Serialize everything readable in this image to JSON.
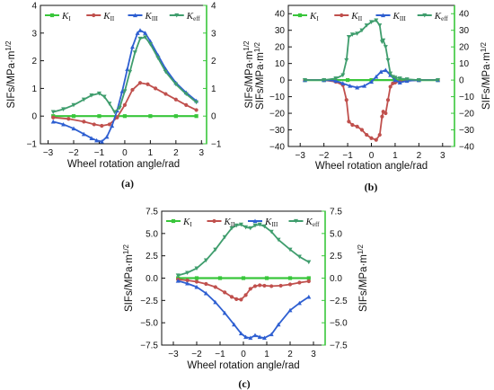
{
  "colors": {
    "K_I": "#39c63b",
    "K_II": "#c0504d",
    "K_III": "#2e5fd1",
    "K_eff": "#3f9d6d",
    "right_axis": "#39c63b",
    "axis": "#111111"
  },
  "chart_data": [
    {
      "type": "line",
      "panel_label": "(a)",
      "xlabel": "Wheel rotation angle/rad",
      "ylabel": "SIFs/MPa·m",
      "ylabel_exp": "1/2",
      "ylabel_right": "SIFs/MPa·m",
      "xlim": [
        -3.3,
        3.2
      ],
      "ylim": [
        -1,
        4
      ],
      "xticks": [
        -3,
        -2,
        -1,
        0,
        1,
        2,
        3
      ],
      "xtick_labels": [
        "−3",
        "−2",
        "−1",
        "0",
        "1",
        "2",
        "3"
      ],
      "yticks": [
        -1,
        0,
        1,
        2,
        3,
        4
      ],
      "ytick_labels": [
        "−1",
        "0",
        "1",
        "2",
        "3",
        "4"
      ],
      "legend": [
        {
          "key": "K_I",
          "base": "K",
          "sub": "I"
        },
        {
          "key": "K_II",
          "base": "K",
          "sub": "II"
        },
        {
          "key": "K_III",
          "base": "K",
          "sub": "III"
        },
        {
          "key": "K_eff",
          "base": "K",
          "sub": "eff"
        }
      ],
      "series": [
        {
          "key": "K_I",
          "x": [
            -2.8,
            -2.0,
            -1.0,
            0.0,
            1.0,
            2.0,
            2.8
          ],
          "y": [
            0.0,
            0.0,
            0.0,
            0.0,
            0.0,
            0.0,
            0.0
          ]
        },
        {
          "key": "K_II",
          "x": [
            -2.8,
            -2.2,
            -1.6,
            -1.2,
            -0.9,
            -0.6,
            -0.3,
            0.0,
            0.3,
            0.6,
            0.9,
            1.2,
            1.6,
            2.0,
            2.4,
            2.8
          ],
          "y": [
            -0.05,
            -0.1,
            -0.2,
            -0.3,
            -0.35,
            -0.3,
            -0.05,
            0.4,
            0.95,
            1.2,
            1.15,
            1.0,
            0.8,
            0.6,
            0.4,
            0.22
          ]
        },
        {
          "key": "K_III",
          "x": [
            -2.8,
            -2.4,
            -2.0,
            -1.6,
            -1.3,
            -1.1,
            -0.9,
            -0.7,
            -0.5,
            -0.3,
            -0.1,
            0.1,
            0.3,
            0.5,
            0.6,
            0.8,
            1.0,
            1.3,
            1.6,
            2.0,
            2.4,
            2.8
          ],
          "y": [
            -0.2,
            -0.3,
            -0.45,
            -0.65,
            -0.8,
            -0.88,
            -0.92,
            -0.75,
            -0.35,
            0.2,
            0.9,
            1.7,
            2.5,
            3.0,
            3.1,
            3.0,
            2.7,
            2.2,
            1.7,
            1.2,
            0.85,
            0.55
          ]
        },
        {
          "key": "K_eff",
          "x": [
            -2.8,
            -2.4,
            -2.0,
            -1.6,
            -1.3,
            -1.0,
            -0.8,
            -0.6,
            -0.4,
            -0.2,
            0.0,
            0.2,
            0.4,
            0.6,
            0.8,
            1.0,
            1.3,
            1.6,
            2.0,
            2.4,
            2.8
          ],
          "y": [
            0.15,
            0.25,
            0.4,
            0.6,
            0.75,
            0.82,
            0.7,
            0.45,
            0.15,
            0.3,
            0.9,
            1.6,
            2.3,
            2.8,
            2.85,
            2.6,
            2.1,
            1.6,
            1.15,
            0.8,
            0.5
          ]
        }
      ]
    },
    {
      "type": "line",
      "panel_label": "(b)",
      "xlabel": "Wheel rotation angle/rad",
      "ylabel": "SIFs/MPa·m",
      "ylabel_exp": "1/2",
      "ylabel_right": "SIFs/MPa·m",
      "xlim": [
        -3.5,
        3.5
      ],
      "ylim": [
        -40,
        45
      ],
      "xticks": [
        -3,
        -2,
        -1,
        0,
        1,
        2,
        3
      ],
      "xtick_labels": [
        "−3",
        "−2",
        "−1",
        "0",
        "1",
        "2",
        "3"
      ],
      "yticks": [
        -40,
        -30,
        -20,
        -10,
        0,
        10,
        20,
        30,
        40
      ],
      "ytick_labels": [
        "−40",
        "−30",
        "−20",
        "−10",
        "0",
        "10",
        "20",
        "30",
        "40"
      ],
      "legend": [
        {
          "key": "K_I",
          "base": "K",
          "sub": "I"
        },
        {
          "key": "K_II",
          "base": "K",
          "sub": "II"
        },
        {
          "key": "K_III",
          "base": "K",
          "sub": "III"
        },
        {
          "key": "K_eff",
          "base": "K",
          "sub": "eff"
        }
      ],
      "series": [
        {
          "key": "K_I",
          "x": [
            -2.8,
            -2.0,
            -1.0,
            0.0,
            1.0,
            2.0,
            2.8
          ],
          "y": [
            0.0,
            0.0,
            0.0,
            0.0,
            0.0,
            0.0,
            0.0
          ]
        },
        {
          "key": "K_II",
          "x": [
            -2.8,
            -2.0,
            -1.5,
            -1.2,
            -1.05,
            -0.95,
            -0.8,
            -0.6,
            -0.4,
            -0.2,
            0.0,
            0.2,
            0.35,
            0.45,
            0.5,
            0.6,
            0.7,
            0.8,
            0.9,
            1.0,
            1.2,
            1.5,
            2.0,
            2.8
          ],
          "y": [
            0.0,
            0.0,
            -1.0,
            -3.0,
            -12.0,
            -25.0,
            -27.0,
            -28.0,
            -30.0,
            -33.0,
            -35.0,
            -36.0,
            -33.0,
            -22.0,
            -19.0,
            -20.0,
            -12.0,
            -4.0,
            -2.0,
            -1.5,
            -1.0,
            -0.5,
            0.0,
            0.0
          ]
        },
        {
          "key": "K_III",
          "x": [
            -2.8,
            -2.0,
            -1.5,
            -1.2,
            -0.9,
            -0.6,
            -0.3,
            0.0,
            0.2,
            0.4,
            0.6,
            0.8,
            1.0,
            1.2,
            1.5,
            2.0,
            2.8
          ],
          "y": [
            0.0,
            0.0,
            -0.5,
            -2.0,
            -3.5,
            -4.5,
            -3.5,
            -1.0,
            2.0,
            5.0,
            6.0,
            3.0,
            0.0,
            -1.5,
            -0.5,
            0.0,
            0.0
          ]
        },
        {
          "key": "K_eff",
          "x": [
            -2.8,
            -2.0,
            -1.5,
            -1.2,
            -1.05,
            -0.95,
            -0.8,
            -0.6,
            -0.4,
            -0.2,
            0.0,
            0.2,
            0.35,
            0.45,
            0.5,
            0.6,
            0.7,
            0.8,
            0.9,
            1.0,
            1.2,
            1.5,
            2.0,
            2.8
          ],
          "y": [
            0.0,
            0.0,
            1.0,
            3.0,
            12.0,
            26.0,
            27.5,
            28.0,
            30.0,
            33.0,
            35.0,
            36.0,
            33.0,
            23.0,
            24.0,
            20.0,
            12.0,
            4.0,
            2.0,
            1.5,
            1.0,
            0.5,
            0.0,
            0.0
          ]
        }
      ]
    },
    {
      "type": "line",
      "panel_label": "(c)",
      "xlabel": "Wheel rotation angle/rad",
      "ylabel": "SIFs/MPa·m",
      "ylabel_exp": "1/2",
      "ylabel_right": "SIFs/MPa·m",
      "xlim": [
        -3.5,
        3.5
      ],
      "ylim": [
        -7.5,
        7.5
      ],
      "xticks": [
        -3,
        -2,
        -1,
        0,
        1,
        2,
        3
      ],
      "xtick_labels": [
        "−3",
        "−2",
        "−1",
        "0",
        "1",
        "2",
        "3"
      ],
      "yticks": [
        -7.5,
        -5.0,
        -2.5,
        0.0,
        2.5,
        5.0,
        7.5
      ],
      "ytick_labels": [
        "−7.5",
        "−5.0",
        "−2.5",
        "0.0",
        "2.5",
        "5.0",
        "7.5"
      ],
      "legend": [
        {
          "key": "K_I",
          "base": "K",
          "sub": "I"
        },
        {
          "key": "K_II",
          "base": "K",
          "sub": "II"
        },
        {
          "key": "K_III",
          "base": "K",
          "sub": "III"
        },
        {
          "key": "K_eff",
          "base": "K",
          "sub": "eff"
        }
      ],
      "series": [
        {
          "key": "K_I",
          "x": [
            -2.8,
            -2.0,
            -1.0,
            0.0,
            1.0,
            2.0,
            2.8
          ],
          "y": [
            0.0,
            0.0,
            0.0,
            0.0,
            0.0,
            0.0,
            0.0
          ]
        },
        {
          "key": "K_II",
          "x": [
            -2.8,
            -2.4,
            -2.0,
            -1.6,
            -1.2,
            -0.8,
            -0.5,
            -0.3,
            -0.1,
            0.1,
            0.3,
            0.5,
            0.7,
            0.9,
            1.2,
            1.6,
            2.0,
            2.4,
            2.8
          ],
          "y": [
            -0.15,
            -0.25,
            -0.4,
            -0.65,
            -1.0,
            -1.6,
            -2.1,
            -2.35,
            -2.4,
            -1.9,
            -1.2,
            -0.9,
            -0.8,
            -0.85,
            -0.9,
            -0.85,
            -0.7,
            -0.5,
            -0.35
          ]
        },
        {
          "key": "K_III",
          "x": [
            -2.8,
            -2.4,
            -2.0,
            -1.6,
            -1.2,
            -0.8,
            -0.4,
            -0.1,
            0.1,
            0.3,
            0.5,
            0.7,
            0.9,
            1.2,
            1.5,
            2.0,
            2.4,
            2.8
          ],
          "y": [
            -0.3,
            -0.6,
            -1.0,
            -1.7,
            -2.7,
            -3.9,
            -5.2,
            -6.2,
            -6.6,
            -6.7,
            -6.4,
            -6.6,
            -6.7,
            -6.3,
            -5.2,
            -3.6,
            -2.8,
            -2.1
          ]
        },
        {
          "key": "K_eff",
          "x": [
            -2.8,
            -2.4,
            -2.0,
            -1.6,
            -1.2,
            -0.8,
            -0.5,
            -0.3,
            -0.1,
            0.1,
            0.3,
            0.5,
            0.7,
            0.9,
            1.2,
            1.5,
            2.0,
            2.4,
            2.8
          ],
          "y": [
            0.3,
            0.6,
            1.1,
            2.0,
            3.2,
            4.6,
            5.6,
            5.9,
            6.0,
            5.7,
            5.6,
            5.9,
            6.0,
            5.8,
            5.2,
            4.3,
            3.2,
            2.4,
            1.8
          ]
        }
      ]
    }
  ]
}
